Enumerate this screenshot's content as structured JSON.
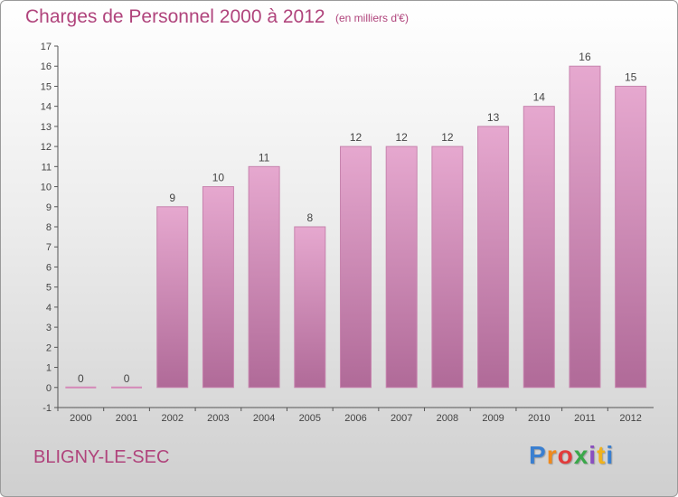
{
  "header": {
    "title": "Charges de Personnel 2000 à 2012",
    "subtitle": "(en milliers d'€)"
  },
  "footer": {
    "commune": "BLIGNY-LE-SEC"
  },
  "logo": {
    "letters": [
      "P",
      "r",
      "o",
      "x",
      "i",
      "t",
      "i"
    ],
    "colors": [
      "#3a7fd0",
      "#f08a1c",
      "#e23b3b",
      "#3aa84a",
      "#8a4fc0",
      "#f0b21c",
      "#3a7fd0"
    ]
  },
  "colors": {
    "bar_top": "#e6a8cf",
    "bar_bottom": "#b06a98",
    "bar_edge": "#c784ae",
    "zero_line": "#d488b8",
    "axis": "#555555",
    "label": "#444444"
  },
  "chart_data": {
    "type": "bar",
    "categories": [
      "2000",
      "2001",
      "2002",
      "2003",
      "2004",
      "2005",
      "2006",
      "2007",
      "2008",
      "2009",
      "2010",
      "2011",
      "2012"
    ],
    "values": [
      0,
      0,
      9,
      10,
      11,
      8,
      12,
      12,
      12,
      13,
      14,
      16,
      15
    ],
    "data_labels": [
      "0",
      "0",
      "9",
      "10",
      "11",
      "8",
      "12",
      "12",
      "12",
      "13",
      "14",
      "16",
      "15"
    ],
    "y_ticks": [
      "-1",
      "0",
      "1",
      "2",
      "3",
      "4",
      "5",
      "6",
      "7",
      "8",
      "9",
      "10",
      "11",
      "12",
      "13",
      "14",
      "15",
      "16",
      "17"
    ],
    "ylim": [
      -1,
      17
    ],
    "grid": false
  }
}
